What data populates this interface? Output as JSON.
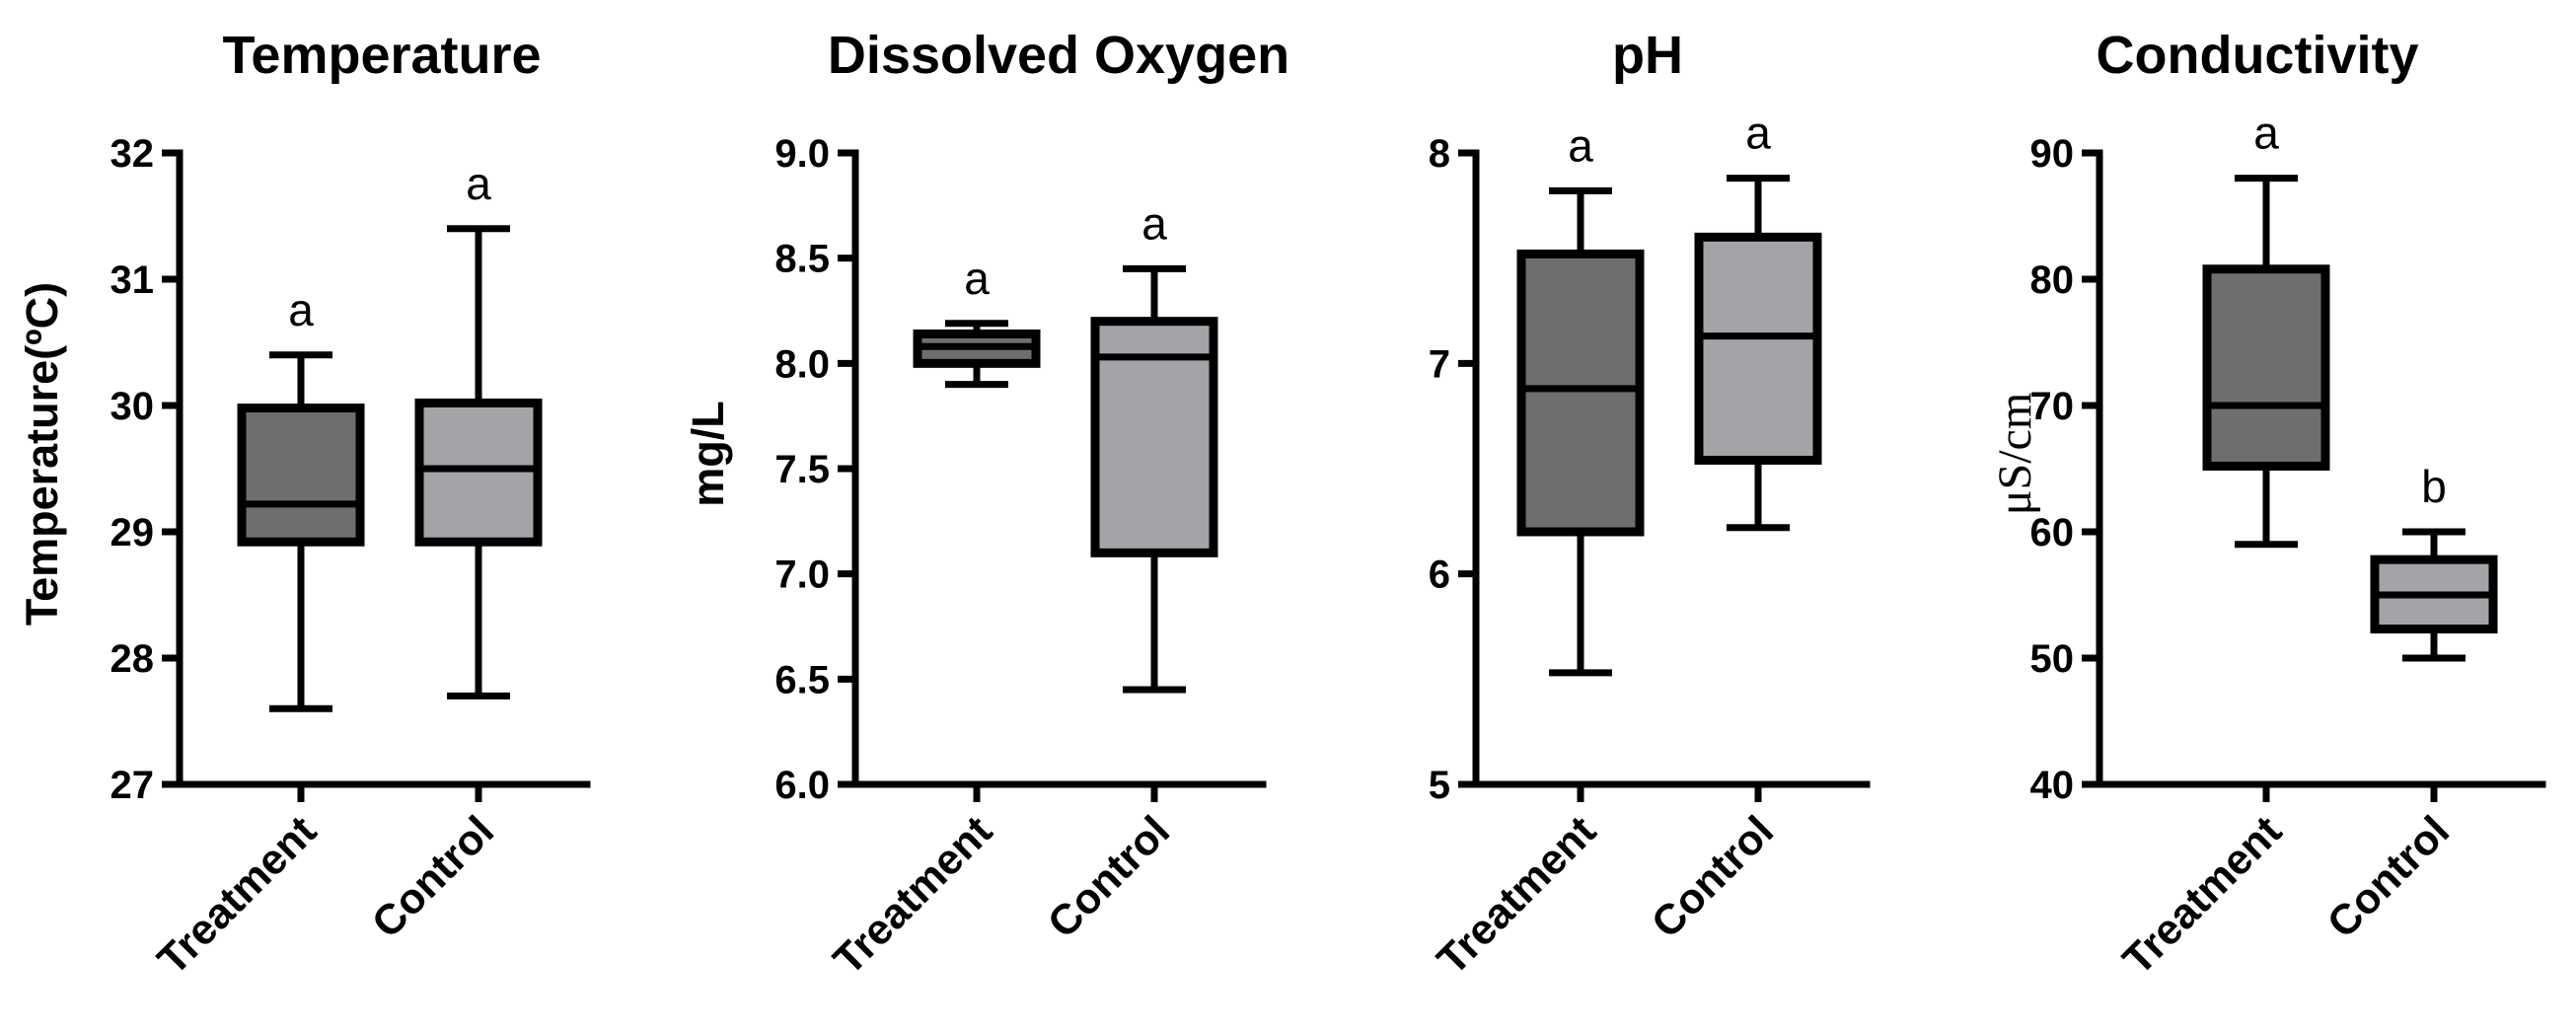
{
  "chart_data": [
    {
      "type": "boxplot",
      "title": "Temperature",
      "ylabel": "Temperature(ºC)",
      "ylim": [
        27,
        32
      ],
      "yticks": [
        27,
        28,
        29,
        30,
        31,
        32
      ],
      "ytick_labels": [
        "27",
        "28",
        "29",
        "30",
        "31",
        "32"
      ],
      "categories": [
        "Treatment",
        "Control"
      ],
      "boxes": [
        {
          "name": "Treatment",
          "min": 27.6,
          "q1": 28.92,
          "median": 29.22,
          "q3": 29.98,
          "max": 30.4,
          "label": "a",
          "color": "#6e6e6e"
        },
        {
          "name": "Control",
          "min": 27.7,
          "q1": 28.92,
          "median": 29.5,
          "q3": 30.02,
          "max": 31.4,
          "label": "a",
          "color": "#a3a3a8"
        }
      ]
    },
    {
      "type": "boxplot",
      "title": "Dissolved Oxygen",
      "ylabel": "mg/L",
      "ylim": [
        6.0,
        9.0
      ],
      "yticks": [
        6.0,
        6.5,
        7.0,
        7.5,
        8.0,
        8.5,
        9.0
      ],
      "ytick_labels": [
        "6.0",
        "6.5",
        "7.0",
        "7.5",
        "8.0",
        "8.5",
        "9.0"
      ],
      "categories": [
        "Treatment",
        "Control"
      ],
      "boxes": [
        {
          "name": "Treatment",
          "min": 7.9,
          "q1": 8.0,
          "median": 8.08,
          "q3": 8.14,
          "max": 8.19,
          "label": "a",
          "color": "#6e6e6e"
        },
        {
          "name": "Control",
          "min": 6.45,
          "q1": 7.1,
          "median": 8.03,
          "q3": 8.2,
          "max": 8.45,
          "label": "a",
          "color": "#a3a3a8"
        }
      ]
    },
    {
      "type": "boxplot",
      "title": "pH",
      "ylabel": "",
      "ylim": [
        5,
        8
      ],
      "yticks": [
        5,
        6,
        7,
        8
      ],
      "ytick_labels": [
        "5",
        "6",
        "7",
        "8"
      ],
      "categories": [
        "Treatment",
        "Control"
      ],
      "boxes": [
        {
          "name": "Treatment",
          "min": 5.53,
          "q1": 6.2,
          "median": 6.88,
          "q3": 7.52,
          "max": 7.82,
          "label": "a",
          "color": "#6e6e6e"
        },
        {
          "name": "Control",
          "min": 6.22,
          "q1": 6.54,
          "median": 7.13,
          "q3": 7.6,
          "max": 7.88,
          "label": "a",
          "color": "#a3a3a8"
        }
      ]
    },
    {
      "type": "boxplot",
      "title": "Conductivity",
      "ylabel": "μS/cm",
      "ylim": [
        40,
        90
      ],
      "yticks": [
        40,
        50,
        60,
        70,
        80,
        90
      ],
      "ytick_labels": [
        "40",
        "50",
        "60",
        "70",
        "80",
        "90"
      ],
      "categories": [
        "Treatment",
        "Control"
      ],
      "boxes": [
        {
          "name": "Treatment",
          "min": 59,
          "q1": 65.2,
          "median": 70,
          "q3": 80.8,
          "max": 88,
          "label": "a",
          "color": "#6e6e6e"
        },
        {
          "name": "Control",
          "min": 50,
          "q1": 52.3,
          "median": 55,
          "q3": 57.8,
          "max": 60,
          "label": "b",
          "color": "#a3a3a8"
        }
      ]
    }
  ]
}
